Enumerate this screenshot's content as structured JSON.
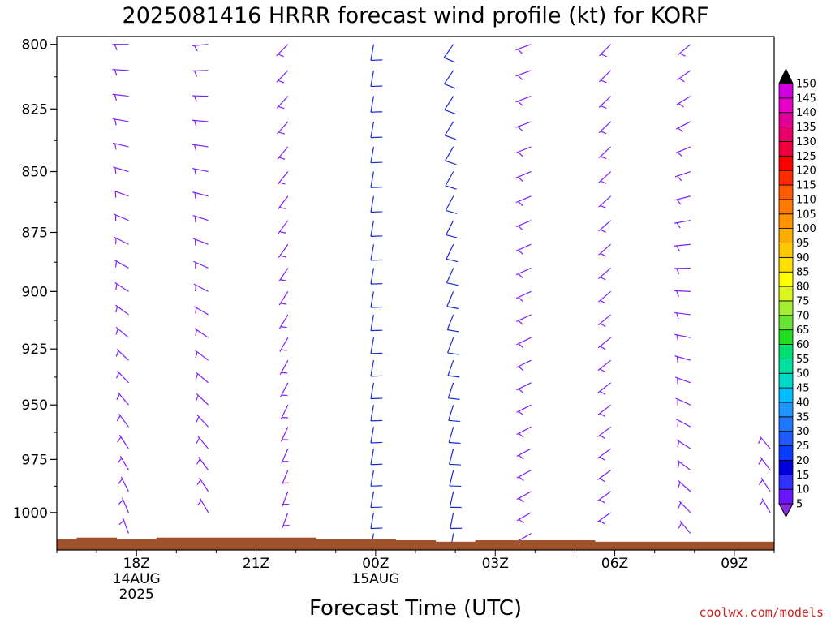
{
  "chart_data": {
    "type": "wind-profile",
    "title": "2025081416 HRRR forecast wind profile (kt) for KORF",
    "xlabel": "Forecast Time (UTC)",
    "credit": "coolwx.com/models",
    "y_axis": {
      "ticks": [
        800,
        825,
        850,
        875,
        900,
        925,
        950,
        975,
        1000
      ],
      "range": [
        797,
        1018
      ],
      "inverted": true,
      "scale": "log"
    },
    "x_axis": {
      "range_hours": [
        16.0,
        34.0
      ],
      "ticks": [
        {
          "hour": 18,
          "label": "18Z",
          "sub1": "14AUG",
          "sub2": "2025"
        },
        {
          "hour": 21,
          "label": "21Z",
          "sub1": "",
          "sub2": ""
        },
        {
          "hour": 24,
          "label": "00Z",
          "sub1": "15AUG",
          "sub2": ""
        },
        {
          "hour": 27,
          "label": "03Z",
          "sub1": "",
          "sub2": ""
        },
        {
          "hour": 30,
          "label": "06Z",
          "sub1": "",
          "sub2": ""
        },
        {
          "hour": 33,
          "label": "09Z",
          "sub1": "",
          "sub2": ""
        }
      ]
    },
    "surface_pressure": [
      {
        "from": 16.0,
        "to": 16.5,
        "p": 1012.6
      },
      {
        "from": 16.5,
        "to": 17.5,
        "p": 1012.0
      },
      {
        "from": 17.5,
        "to": 18.5,
        "p": 1012.6
      },
      {
        "from": 18.5,
        "to": 19.5,
        "p": 1012.0
      },
      {
        "from": 19.5,
        "to": 20.5,
        "p": 1012.0
      },
      {
        "from": 20.5,
        "to": 21.5,
        "p": 1012.0
      },
      {
        "from": 21.5,
        "to": 22.5,
        "p": 1012.0
      },
      {
        "from": 22.5,
        "to": 23.5,
        "p": 1012.6
      },
      {
        "from": 23.5,
        "to": 24.5,
        "p": 1012.6
      },
      {
        "from": 24.5,
        "to": 25.5,
        "p": 1013.3
      },
      {
        "from": 25.5,
        "to": 26.5,
        "p": 1014.0
      },
      {
        "from": 26.5,
        "to": 27.5,
        "p": 1013.3
      },
      {
        "from": 27.5,
        "to": 28.5,
        "p": 1013.3
      },
      {
        "from": 28.5,
        "to": 29.5,
        "p": 1013.3
      },
      {
        "from": 29.5,
        "to": 30.5,
        "p": 1014.0
      },
      {
        "from": 30.5,
        "to": 31.5,
        "p": 1014.0
      },
      {
        "from": 31.5,
        "to": 32.5,
        "p": 1014.0
      },
      {
        "from": 32.5,
        "to": 34.0,
        "p": 1014.0
      }
    ],
    "surface_color": "#a0522d",
    "barb_color_default": "#7f1fff",
    "barb_color_strong": "#1a2ad8",
    "columns": [
      {
        "hour": 17.8,
        "p_top": 800,
        "p_bottom": 1010,
        "dir_top": 270,
        "dir_bottom": 340,
        "speed": 7
      },
      {
        "hour": 19.8,
        "p_top": 800,
        "p_bottom": 1002,
        "dir_top": 265,
        "dir_bottom": 330,
        "speed": 7
      },
      {
        "hour": 21.8,
        "p_top": 800,
        "p_bottom": 1008,
        "dir_top": 225,
        "dir_bottom": 200,
        "speed": 8
      },
      {
        "hour": 23.95,
        "p_top": 800,
        "p_bottom": 1014,
        "dir_top": 190,
        "dir_bottom": 190,
        "speed": 12
      },
      {
        "hour": 25.95,
        "p_top": 800,
        "p_bottom": 1014,
        "dir_top": 215,
        "dir_bottom": 190,
        "speed": 11
      },
      {
        "hour": 27.9,
        "p_top": 800,
        "p_bottom": 1010,
        "dir_top": 250,
        "dir_bottom": 240,
        "speed": 8
      },
      {
        "hour": 29.9,
        "p_top": 800,
        "p_bottom": 1004,
        "dir_top": 225,
        "dir_bottom": 235,
        "speed": 8
      },
      {
        "hour": 31.9,
        "p_top": 800,
        "p_bottom": 1013,
        "dir_top": 230,
        "dir_bottom": 320,
        "speed": 8
      },
      {
        "hour": 33.9,
        "p_top": 970,
        "p_bottom": 1000,
        "dir_top": 320,
        "dir_bottom": 330,
        "speed": 7
      }
    ],
    "colorbar": {
      "labels": [
        5,
        10,
        15,
        20,
        25,
        30,
        35,
        40,
        45,
        50,
        55,
        60,
        65,
        70,
        75,
        80,
        85,
        90,
        95,
        100,
        105,
        110,
        115,
        120,
        125,
        130,
        135,
        140,
        145,
        150
      ],
      "colors": [
        "#8a2be2",
        "#6a14ff",
        "#3030ff",
        "#0000dd",
        "#0a3cff",
        "#1e5aff",
        "#1e78ff",
        "#1e96ff",
        "#00bfff",
        "#00d8c8",
        "#00e0a0",
        "#00e070",
        "#22dd22",
        "#66e633",
        "#a6ee33",
        "#dcf51e",
        "#ffff00",
        "#ffe000",
        "#ffc800",
        "#ffae00",
        "#ff9400",
        "#ff7a00",
        "#ff5a00",
        "#ff2a00",
        "#ff0000",
        "#f00040",
        "#e8006a",
        "#e00096",
        "#e800c8",
        "#d000e0"
      ]
    }
  }
}
